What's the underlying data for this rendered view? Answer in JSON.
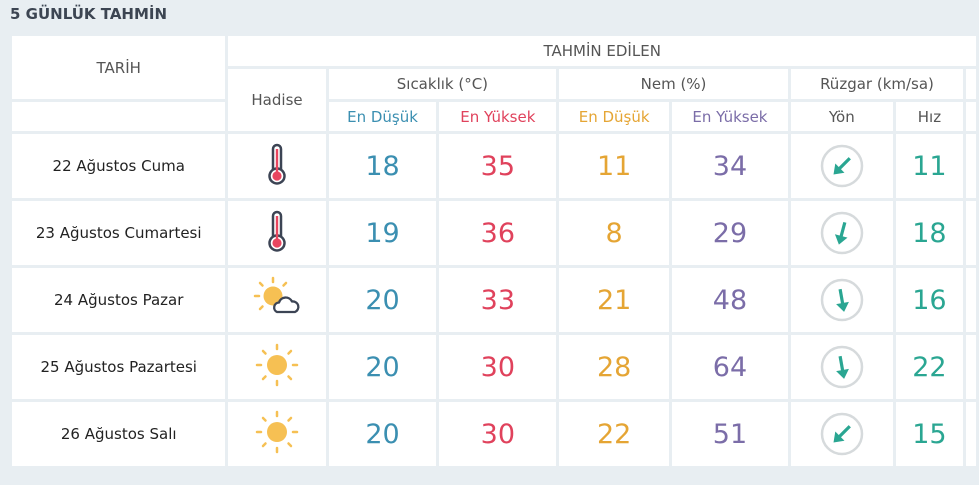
{
  "title": "5 GÜNLÜK TAHMİN",
  "header": {
    "tarih": "TARİH",
    "tahmin": "TAHMİN EDİLEN",
    "hadise": "Hadise",
    "sicaklik": "Sıcaklık (°C)",
    "nem": "Nem (%)",
    "ruzgar": "Rüzgar (km/sa)",
    "en_dusuk": "En Düşük",
    "en_yuksek": "En Yüksek",
    "yon": "Yön",
    "hiz": "Hız"
  },
  "colors": {
    "low_temp": "#3b8fb1",
    "high_temp": "#e0425c",
    "low_hum": "#e5a534",
    "high_hum": "#7b6da8",
    "wind": "#2aa692"
  },
  "rows": [
    {
      "date": "22 Ağustos Cuma",
      "icon": "thermometer-icon",
      "t_low": "18",
      "t_high": "35",
      "h_low": "11",
      "h_high": "34",
      "wind_dir_deg": 45,
      "wind_speed": "11"
    },
    {
      "date": "23 Ağustos Cumartesi",
      "icon": "thermometer-icon",
      "t_low": "19",
      "t_high": "36",
      "h_low": "8",
      "h_high": "29",
      "wind_dir_deg": 15,
      "wind_speed": "18"
    },
    {
      "date": "24 Ağustos Pazar",
      "icon": "partly-cloudy-icon",
      "t_low": "20",
      "t_high": "33",
      "h_low": "21",
      "h_high": "48",
      "wind_dir_deg": -10,
      "wind_speed": "16"
    },
    {
      "date": "25 Ağustos Pazartesi",
      "icon": "sun-icon",
      "t_low": "20",
      "t_high": "30",
      "h_low": "28",
      "h_high": "64",
      "wind_dir_deg": -10,
      "wind_speed": "22"
    },
    {
      "date": "26 Ağustos Salı",
      "icon": "sun-icon",
      "t_low": "20",
      "t_high": "30",
      "h_low": "22",
      "h_high": "51",
      "wind_dir_deg": 45,
      "wind_speed": "15"
    }
  ]
}
